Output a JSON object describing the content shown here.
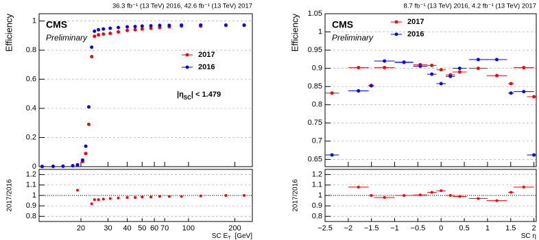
{
  "chart_data": [
    {
      "type": "scatter",
      "header": "36.3 fb⁻¹ (13 TeV) 2016, 42.6 fb⁻¹ (13 TeV) 2017",
      "cms": "CMS",
      "preliminary": "Preliminary",
      "ylabel": "Efficiency",
      "xlabel": "SC E",
      "xlabel_sub": "T",
      "xlabel_after": "[GeV]",
      "annotation": "|η",
      "annotation_sub": "SC",
      "annotation_after": "| < 1.479",
      "xlog": true,
      "xlim": [
        10.7,
        260
      ],
      "xticks": [
        20,
        30,
        40,
        50,
        60,
        70,
        100,
        200
      ],
      "ylim": [
        0,
        1.05
      ],
      "yticks": [
        0,
        0.2,
        0.4,
        0.6,
        0.8,
        1
      ],
      "grid": true,
      "legend": "center right",
      "x": [
        11.2,
        13.2,
        15.3,
        17.7,
        19,
        20.5,
        21.5,
        22.5,
        23.5,
        24.5,
        26,
        28,
        31,
        35,
        40,
        45,
        50,
        57,
        65,
        75,
        90,
        120,
        175,
        230
      ],
      "series": [
        {
          "name": "2017",
          "color": "#ff0000",
          "values": [
            0.001,
            0.002,
            0.003,
            0.006,
            0.012,
            0.035,
            0.09,
            0.29,
            0.755,
            0.895,
            0.905,
            0.91,
            0.915,
            0.925,
            0.935,
            0.94,
            0.945,
            0.95,
            0.955,
            0.96,
            0.965,
            0.965,
            0.97,
            0.97
          ]
        },
        {
          "name": "2016",
          "color": "#0000ff",
          "values": [
            0.001,
            0.002,
            0.003,
            0.006,
            0.012,
            0.045,
            0.14,
            0.41,
            0.82,
            0.93,
            0.94,
            0.945,
            0.95,
            0.955,
            0.96,
            0.962,
            0.965,
            0.967,
            0.97,
            0.97,
            0.972,
            0.972,
            0.972,
            0.972
          ]
        }
      ],
      "ratio": {
        "ylabel": "2017/2016",
        "color": "#ff0000",
        "ylim": [
          0.75,
          1.25
        ],
        "yticks": [
          0.8,
          0.9,
          1,
          1.1,
          1.2
        ],
        "line": 1,
        "x": [
          19,
          23.5,
          24.5,
          26,
          28,
          31,
          35,
          40,
          45,
          50,
          57,
          65,
          75,
          90,
          120,
          175,
          230
        ],
        "values": [
          1.05,
          0.92,
          0.96,
          0.96,
          0.965,
          0.97,
          0.975,
          0.98,
          0.98,
          0.985,
          0.985,
          0.99,
          0.99,
          0.99,
          0.995,
          1.0,
          1.0
        ]
      }
    },
    {
      "type": "scatter",
      "header": "8.7 fb⁻¹ (13 TeV) 2016, 4.2 fb⁻¹ (13 TeV) 2017",
      "cms": "CMS",
      "preliminary": "Preliminary",
      "ylabel": "Efficiency",
      "xlabel": "SC η",
      "xlog": false,
      "xlim": [
        -2.5,
        2.05
      ],
      "xticks": [
        {
          "value": -2.5,
          "label": "−2.5"
        },
        {
          "value": -2,
          "label": "−2"
        },
        {
          "value": -1.5,
          "label": "−1.5"
        },
        {
          "value": -1,
          "label": "−1"
        },
        {
          "value": -0.5,
          "label": "−0.5"
        },
        0,
        0.5,
        1,
        1.5,
        2
      ],
      "ylim": [
        0.63,
        1.05
      ],
      "yticks": [
        0.65,
        0.7,
        0.75,
        0.8,
        0.85,
        0.9,
        0.95,
        1,
        1.05
      ],
      "grid": true,
      "legend": "upper center",
      "x": [
        -2.35,
        -1.78,
        -1.505,
        -1.22,
        -0.8,
        -0.45,
        -0.2,
        0,
        0.2,
        0.4,
        0.8,
        1.2,
        1.505,
        1.78,
        2.0
      ],
      "xerr": [
        0.15,
        0.22,
        0.06,
        0.22,
        0.2,
        0.15,
        0.1,
        0.1,
        0.1,
        0.15,
        0.2,
        0.22,
        0.06,
        0.22,
        0.15
      ],
      "series": [
        {
          "name": "2017",
          "color": "#ff0000",
          "values": [
            0.832,
            0.902,
            0.853,
            0.902,
            0.916,
            0.91,
            0.908,
            0.896,
            0.882,
            0.89,
            0.9,
            0.88,
            0.858,
            0.902,
            0.822
          ]
        },
        {
          "name": "2016",
          "color": "#0000ff",
          "values": [
            0.662,
            0.838,
            0.852,
            0.92,
            0.917,
            0.906,
            0.884,
            0.858,
            0.878,
            0.9,
            0.924,
            0.924,
            0.832,
            0.836,
            0.662
          ]
        }
      ],
      "ratio": {
        "ylabel": "2017/2016",
        "color": "#ff0000",
        "ylim": [
          0.75,
          1.25
        ],
        "yticks": [
          0.8,
          0.9,
          1,
          1.1,
          1.2
        ],
        "line": 1,
        "x": [
          -1.78,
          -1.505,
          -1.22,
          -0.8,
          -0.45,
          -0.2,
          0,
          0.2,
          0.4,
          0.8,
          1.2,
          1.505,
          1.78
        ],
        "xerr": [
          0.22,
          0.06,
          0.22,
          0.2,
          0.15,
          0.1,
          0.1,
          0.1,
          0.15,
          0.2,
          0.22,
          0.06,
          0.22
        ],
        "values": [
          1.08,
          1.0,
          0.98,
          1.0,
          1.005,
          1.03,
          1.045,
          1.0,
          0.99,
          0.97,
          0.95,
          1.03,
          1.08
        ]
      }
    }
  ]
}
